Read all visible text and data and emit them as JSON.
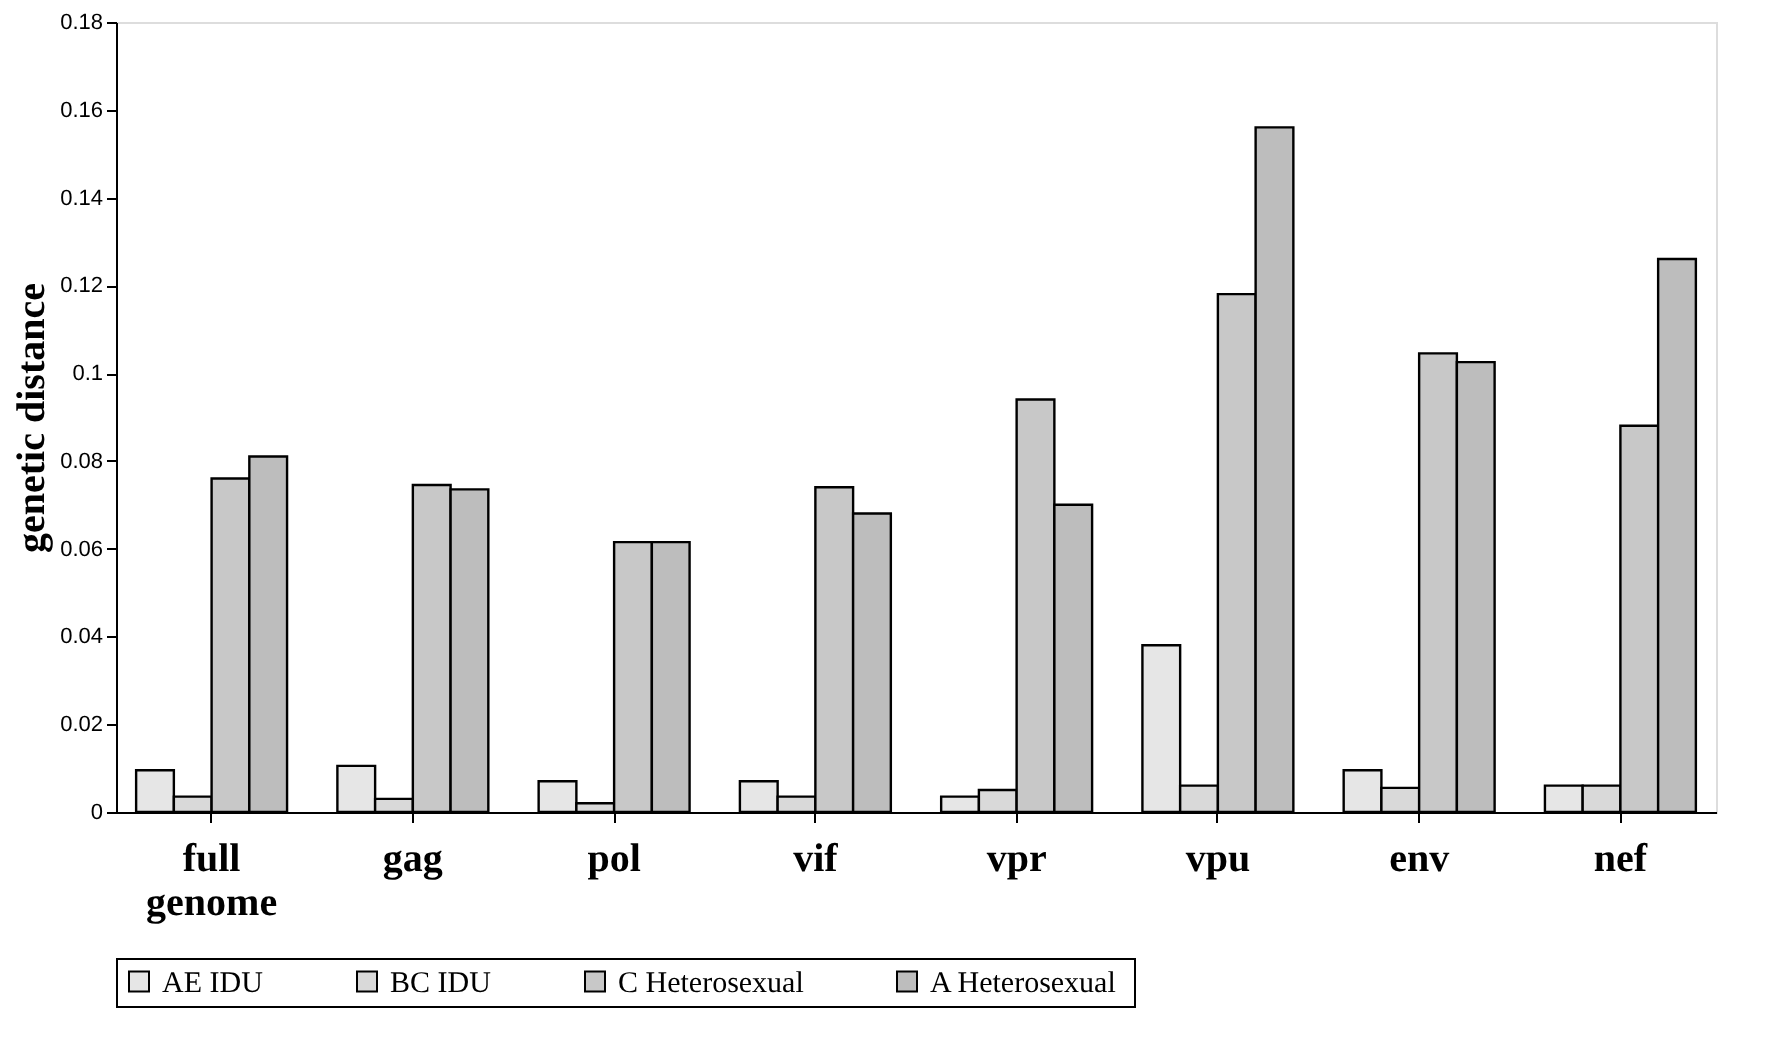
{
  "chart_data": {
    "type": "bar",
    "ylabel": "genetic distance",
    "categories": [
      "full genome",
      "gag",
      "pol",
      "vif",
      "vpr",
      "vpu",
      "env",
      "nef"
    ],
    "series": [
      {
        "name": "AE  IDU",
        "color": "#e6e6e6",
        "values": [
          0.0095,
          0.0105,
          0.007,
          0.007,
          0.0035,
          0.038,
          0.0095,
          0.006
        ]
      },
      {
        "name": "BC  IDU",
        "color": "#d9d9d9",
        "values": [
          0.0035,
          0.003,
          0.002,
          0.0035,
          0.005,
          0.006,
          0.0055,
          0.006
        ]
      },
      {
        "name": "C  Heterosexual",
        "color": "#c8c8c8",
        "values": [
          0.076,
          0.0745,
          0.0615,
          0.074,
          0.094,
          0.118,
          0.1045,
          0.088
        ]
      },
      {
        "name": "A  Heterosexual",
        "color": "#bdbdbd",
        "values": [
          0.081,
          0.0735,
          0.0615,
          0.068,
          0.07,
          0.156,
          0.1025,
          0.126
        ]
      }
    ],
    "ylim": [
      0,
      0.18
    ],
    "yticks": [
      0,
      0.02,
      0.04,
      0.06,
      0.08,
      0.1,
      0.12,
      0.14,
      0.16,
      0.18
    ],
    "grid": false,
    "legend": "bottom"
  }
}
